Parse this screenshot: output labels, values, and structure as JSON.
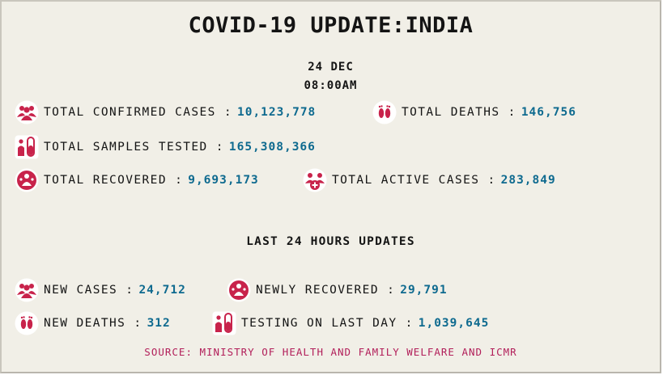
{
  "header": {
    "title": "COVID-19 UPDATE:INDIA",
    "date": "24 DEC",
    "time": "08:00AM"
  },
  "totals": {
    "confirmed_label": "TOTAL CONFIRMED CASES :",
    "confirmed_value": "10,123,778",
    "deaths_label": "TOTAL DEATHS :",
    "deaths_value": "146,756",
    "samples_label": "TOTAL SAMPLES TESTED :",
    "samples_value": "165,308,366",
    "recovered_label": "TOTAL RECOVERED :",
    "recovered_value": "9,693,173",
    "active_label": "TOTAL ACTIVE CASES :",
    "active_value": "283,849"
  },
  "last24": {
    "heading": "LAST 24 HOURS UPDATES",
    "new_cases_label": "NEW CASES :",
    "new_cases_value": "24,712",
    "new_recovered_label": "NEWLY RECOVERED :",
    "new_recovered_value": "29,791",
    "new_deaths_label": "NEW DEATHS :",
    "new_deaths_value": "312",
    "testing_label": "TESTING ON LAST DAY :",
    "testing_value": "1,039,645"
  },
  "source": "SOURCE: MINISTRY OF HEALTH AND FAMILY WELFARE AND ICMR",
  "colors": {
    "background": "#f1efe7",
    "value_blue": "#0e6a8f",
    "icon_red": "#c8234b",
    "source_magenta": "#b21f5a"
  },
  "icons": [
    "people-icon",
    "footprints-icon",
    "test-tube-icon",
    "recovered-icon",
    "active-cases-icon"
  ]
}
